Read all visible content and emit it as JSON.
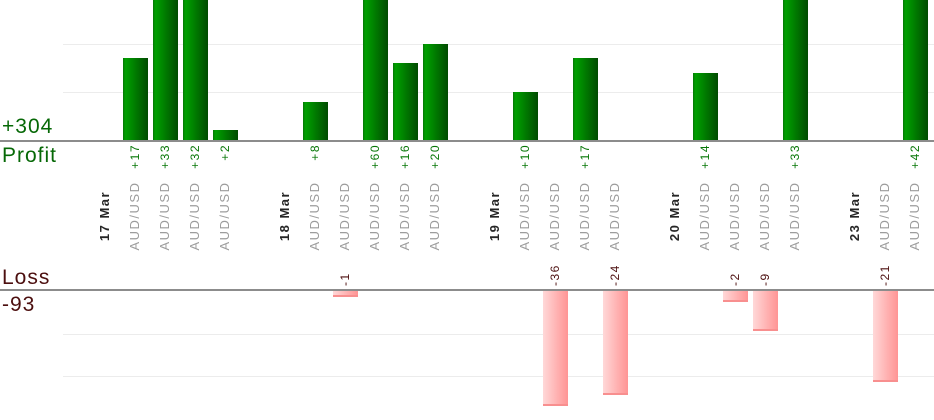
{
  "chart_data": {
    "type": "bar",
    "title": "",
    "orientation": "vertical",
    "grid": true,
    "gridline_step_value": 10,
    "profit": {
      "total_label": "+304",
      "axis_label": "Profit",
      "text_color": "#066806",
      "value_label_color": "#077707",
      "bar_gradient": [
        "#057805",
        "#00a000",
        "#014b01"
      ],
      "axis_visible_max": 30
    },
    "loss": {
      "total_label": "-93",
      "axis_label": "Loss",
      "text_color": "#4c0f0f",
      "value_label_color": "#4c0f0f",
      "bar_gradient": [
        "#ffd8d8",
        "#ff9494"
      ],
      "bar_border": "#f88f8f",
      "axis_visible_max": -27
    },
    "axis_color": "#8c8c8c",
    "grid_color": "#ececec",
    "date_label_color": "#262626",
    "symbol_label_color": "#9c9c9c",
    "groups": [
      {
        "date": "17 Mar",
        "trades": [
          {
            "symbol": "AUD/USD",
            "value": 17,
            "label": "+17"
          },
          {
            "symbol": "AUD/USD",
            "value": 33,
            "label": "+33"
          },
          {
            "symbol": "AUD/USD",
            "value": 32,
            "label": "+32"
          },
          {
            "symbol": "AUD/USD",
            "value": 2,
            "label": "+2"
          }
        ]
      },
      {
        "date": "18 Mar",
        "trades": [
          {
            "symbol": "AUD/USD",
            "value": 8,
            "label": "+8"
          },
          {
            "symbol": "AUD/USD",
            "value": -1,
            "label": "-1"
          },
          {
            "symbol": "AUD/USD",
            "value": 60,
            "label": "+60"
          },
          {
            "symbol": "AUD/USD",
            "value": 16,
            "label": "+16"
          },
          {
            "symbol": "AUD/USD",
            "value": 20,
            "label": "+20"
          }
        ]
      },
      {
        "date": "19 Mar",
        "trades": [
          {
            "symbol": "AUD/USD",
            "value": 10,
            "label": "+10"
          },
          {
            "symbol": "AUD/USD",
            "value": -36,
            "label": "-36"
          },
          {
            "symbol": "AUD/USD",
            "value": 17,
            "label": "+17"
          },
          {
            "symbol": "AUD/USD",
            "value": -24,
            "label": "-24"
          }
        ]
      },
      {
        "date": "20 Mar",
        "trades": [
          {
            "symbol": "AUD/USD",
            "value": 14,
            "label": "+14"
          },
          {
            "symbol": "AUD/USD",
            "value": -2,
            "label": "-2"
          },
          {
            "symbol": "AUD/USD",
            "value": -9,
            "label": "-9"
          },
          {
            "symbol": "AUD/USD",
            "value": 33,
            "label": "+33"
          }
        ]
      },
      {
        "date": "23 Mar",
        "trades": [
          {
            "symbol": "AUD/USD",
            "value": -21,
            "label": "-21"
          },
          {
            "symbol": "AUD/USD",
            "value": 42,
            "label": "+42"
          }
        ]
      }
    ]
  }
}
